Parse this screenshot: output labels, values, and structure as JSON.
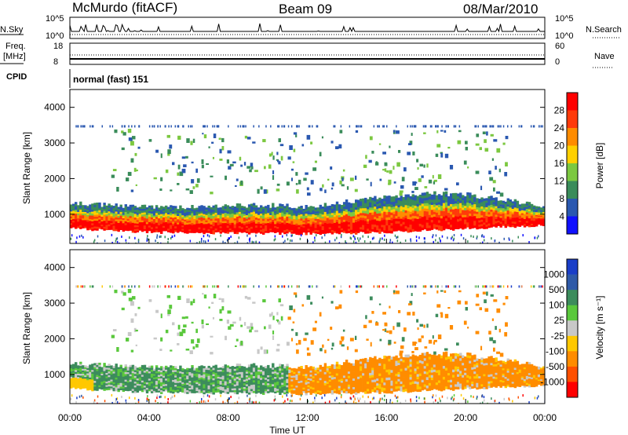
{
  "header": {
    "station": "McMurdo (fitACF)",
    "beam": "Beam 09",
    "date": "08/Mar/2010"
  },
  "noise_panel": {
    "left_label": "N.Sky",
    "right_label": "N.Search",
    "left_ticks": [
      "10^5",
      "10^0"
    ],
    "right_ticks": [
      "10^5",
      "10^0"
    ]
  },
  "freq_panel": {
    "left_label_1": "Freq.",
    "left_label_2": "[MHz]",
    "left_ticks": [
      "18",
      "8"
    ],
    "right_label": "Nave",
    "right_ticks": [
      "60",
      "0"
    ]
  },
  "cpid": {
    "label": "CPID",
    "value": "normal (fast) 151"
  },
  "power_panel": {
    "ylabel": "Slant Range [km]",
    "yticks": [
      "4000",
      "3000",
      "2000",
      "1000"
    ],
    "colorbar_label": "Power [dB]",
    "colorbar_ticks": [
      "28",
      "24",
      "20",
      "16",
      "12",
      "8",
      "4"
    ],
    "colorbar_colors": [
      "#ff0000",
      "#ff3a0a",
      "#ff8c00",
      "#ffd000",
      "#7cc840",
      "#3a8c5a",
      "#2a58b0",
      "#1010ff"
    ]
  },
  "velocity_panel": {
    "ylabel": "Slant Range [km]",
    "yticks": [
      "4000",
      "3000",
      "2000",
      "1000"
    ],
    "colorbar_label": "Velocity [m s⁻¹]",
    "colorbar_ticks": [
      "1000",
      "500",
      "100",
      "25",
      "-25",
      "-100",
      "-500",
      "-1000"
    ],
    "colorbar_colors": [
      "#1a3ec8",
      "#2f5aa8",
      "#3c8c5c",
      "#5ac83c",
      "#c8c8c8",
      "#ffc800",
      "#ff8c00",
      "#ff5000",
      "#ff0000"
    ]
  },
  "xaxis": {
    "ticks": [
      "00:00",
      "04:00",
      "08:00",
      "12:00",
      "16:00",
      "20:00",
      "00:00"
    ],
    "label": "Time UT"
  },
  "chart_data": {
    "type": "heatmap",
    "x_range_hours": [
      0,
      24
    ],
    "y_range_km": [
      180,
      4500
    ],
    "panels": [
      "Power [dB]",
      "Velocity [m s⁻¹]"
    ],
    "power_levels_dB": [
      4,
      8,
      12,
      16,
      20,
      24,
      28
    ],
    "velocity_levels_m_s": [
      -1000,
      -500,
      -100,
      -25,
      25,
      100,
      500,
      1000
    ],
    "main_echo_band": {
      "lower_edge_km": [
        600,
        550,
        500,
        480,
        470,
        470,
        460,
        470,
        500,
        550,
        600,
        650,
        700
      ],
      "upper_edge_km": [
        1300,
        1250,
        1200,
        1200,
        1250,
        1250,
        1200,
        1350,
        1500,
        1600,
        1550,
        1400,
        1200
      ],
      "sample_hours": [
        0,
        2,
        4,
        6,
        8,
        10,
        12,
        14,
        16,
        18,
        20,
        22,
        24
      ]
    }
  }
}
